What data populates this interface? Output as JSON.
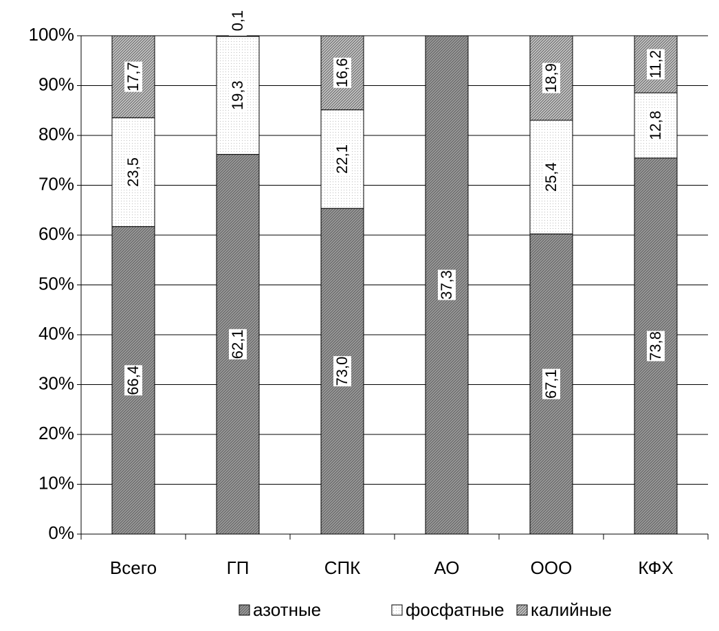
{
  "chart_data": {
    "type": "bar",
    "stacked": "percent",
    "categories": [
      "Всего",
      "ГП",
      "СПК",
      "АО",
      "ООО",
      "КФХ"
    ],
    "series": [
      {
        "name": "азотные",
        "color": "#9a9a9a",
        "values": [
          66.4,
          62.1,
          73.0,
          37.3,
          67.1,
          73.8
        ],
        "value_labels": [
          "66,4",
          "62,1",
          "73,0",
          "37,3",
          "67,1",
          "73,8"
        ]
      },
      {
        "name": "фосфатные",
        "color": "#ffffff",
        "values": [
          23.5,
          19.3,
          22.1,
          null,
          25.4,
          12.8
        ],
        "value_labels": [
          "23,5",
          "19,3",
          "22,1",
          null,
          "25,4",
          "12,8"
        ]
      },
      {
        "name": "калийные",
        "color": "#c4c4c4",
        "values": [
          17.7,
          0.1,
          16.6,
          null,
          18.9,
          11.2
        ],
        "value_labels": [
          "17,7",
          "0,1",
          "16,6",
          null,
          "18,9",
          "11,2"
        ]
      }
    ],
    "ylim": [
      0,
      100
    ],
    "yticks": [
      {
        "value": 0,
        "label": "0%"
      },
      {
        "value": 10,
        "label": "10%"
      },
      {
        "value": 20,
        "label": "20%"
      },
      {
        "value": 30,
        "label": "30%"
      },
      {
        "value": 40,
        "label": "40%"
      },
      {
        "value": 50,
        "label": "50%"
      },
      {
        "value": 60,
        "label": "60%"
      },
      {
        "value": 70,
        "label": "70%"
      },
      {
        "value": 80,
        "label": "80%"
      },
      {
        "value": 90,
        "label": "90%"
      },
      {
        "value": 100,
        "label": "100%"
      }
    ],
    "grid": true,
    "legend": "bottom"
  }
}
